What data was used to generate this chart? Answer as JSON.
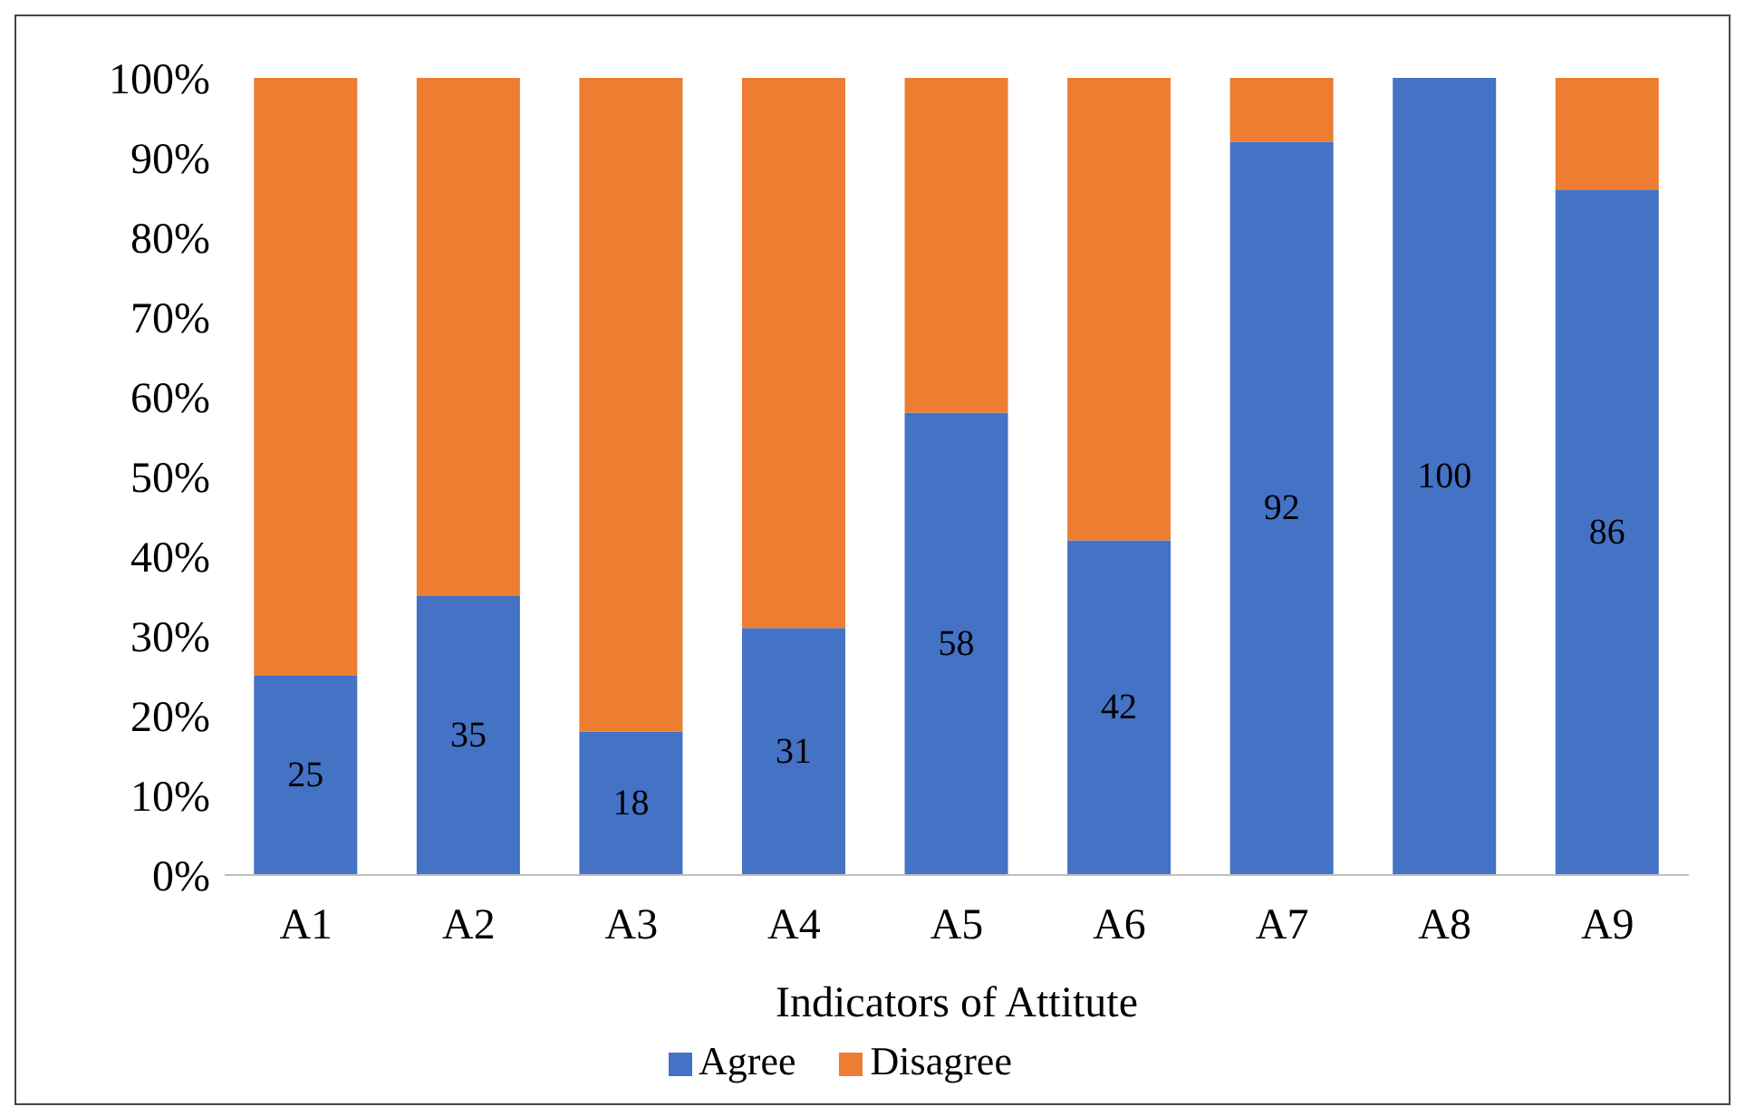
{
  "chart_data": {
    "type": "bar",
    "stacked": true,
    "xlabel": "Indicators of Attitute",
    "categories": [
      "A1",
      "A2",
      "A3",
      "A4",
      "A5",
      "A6",
      "A7",
      "A8",
      "A9"
    ],
    "series": [
      {
        "name": "Agree",
        "color": "#4472c4",
        "values": [
          25,
          35,
          18,
          31,
          58,
          42,
          92,
          100,
          86
        ],
        "value_labels": [
          "25",
          "35",
          "18",
          "31",
          "58",
          "42",
          "92",
          "100",
          "86"
        ]
      },
      {
        "name": "Disagree",
        "color": "#ed7d31",
        "values": [
          75,
          65,
          82,
          69,
          42,
          58,
          8,
          0,
          14
        ]
      }
    ],
    "ylim": [
      0,
      100
    ],
    "yticks": [
      {
        "value": 0,
        "label": "0%"
      },
      {
        "value": 10,
        "label": "10%"
      },
      {
        "value": 20,
        "label": "20%"
      },
      {
        "value": 30,
        "label": "30%"
      },
      {
        "value": 40,
        "label": "40%"
      },
      {
        "value": 50,
        "label": "50%"
      },
      {
        "value": 60,
        "label": "60%"
      },
      {
        "value": 70,
        "label": "70%"
      },
      {
        "value": 80,
        "label": "80%"
      },
      {
        "value": 90,
        "label": "90%"
      },
      {
        "value": 100,
        "label": "100%"
      }
    ],
    "grid": false,
    "legend": "bottom"
  }
}
